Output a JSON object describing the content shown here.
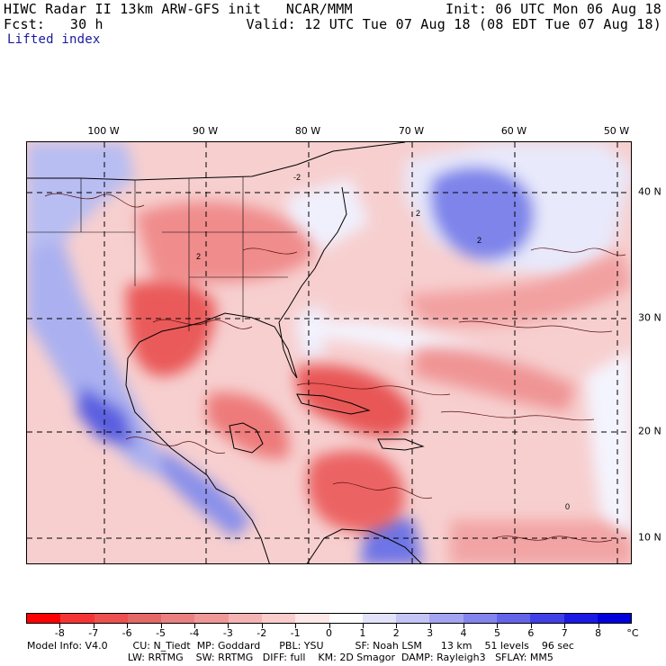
{
  "header": {
    "line1_left": "HIWC Radar II 13km ARW-GFS init   NCAR/MMM",
    "line1_right": "Init: 06 UTC Mon 06 Aug 18",
    "line2_left": "Fcst:   30 h",
    "line2_right": "Valid: 12 UTC Tue 07 Aug 18 (08 EDT Tue 07 Aug 18)",
    "field": "Lifted index"
  },
  "map": {
    "lon_labels": [
      "100 W",
      "90 W",
      "80 W",
      "70 W",
      "60 W",
      "50 W"
    ],
    "lat_labels": [
      "40 N",
      "30 N",
      "20 N",
      "10 N"
    ],
    "contour_labels": [
      "2",
      "-2",
      "2",
      "2",
      "0"
    ],
    "colors": {
      "warm": "#e8484a",
      "cool": "#6060e0",
      "neutral": "#ffffff"
    }
  },
  "colorbar": {
    "unit": "°C",
    "labels": [
      "-8",
      "-7",
      "-6",
      "-5",
      "-4",
      "-3",
      "-2",
      "-1",
      "0",
      "1",
      "2",
      "3",
      "4",
      "5",
      "6",
      "7",
      "8"
    ],
    "colors": [
      "#ff0000",
      "#f53535",
      "#ec5050",
      "#e46868",
      "#ea8080",
      "#f09898",
      "#f5b4b4",
      "#facccc",
      "#ffe8e8",
      "#ffffff",
      "#e2e2fa",
      "#c4c4f6",
      "#a4a4f2",
      "#8484ee",
      "#6464ea",
      "#4040e6",
      "#1a1ae4",
      "#0000dc"
    ]
  },
  "footer": {
    "line1": "Model Info: V4.0        CU: N_Tiedt  MP: Goddard      PBL: YSU          SF: Noah LSM      13 km    51 levels    96 sec",
    "line2": "                                LW: RRTMG    SW: RRTMG   DIFF: full    KM: 2D Smagor  DAMP: Rayleigh3   SFLAY: MM5"
  }
}
